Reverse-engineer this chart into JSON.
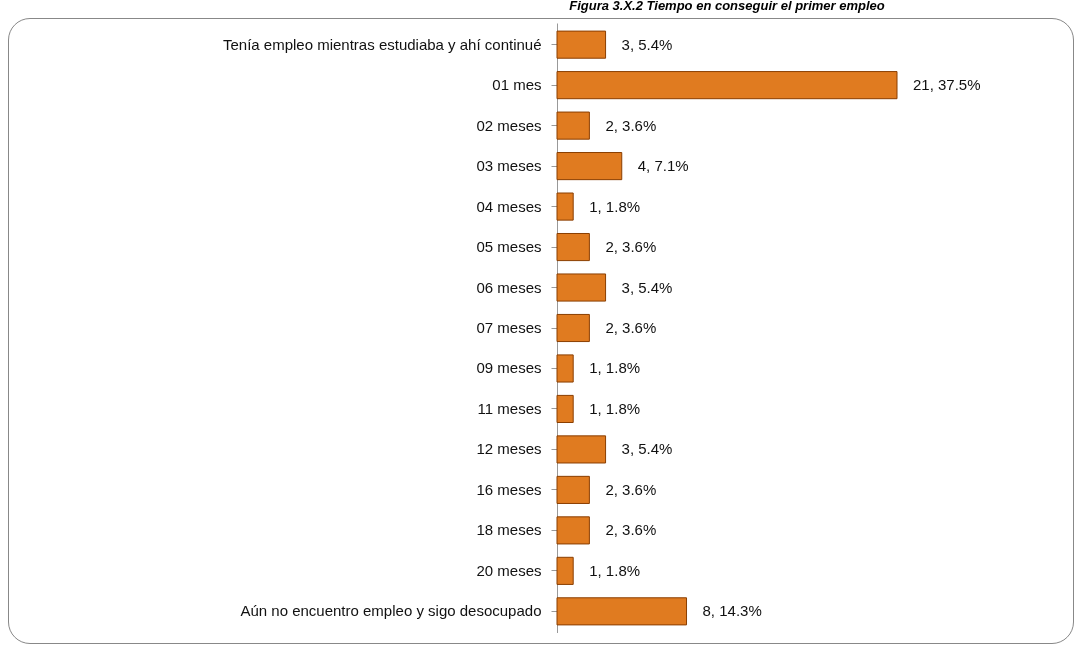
{
  "chart_data": {
    "type": "bar",
    "orientation": "horizontal",
    "title": "Figura 3.X.2 Tiempo en conseguir el primer empleo",
    "categories": [
      "Tenía empleo mientras estudiaba y ahí continué",
      "01 mes",
      "02 meses",
      "03 meses",
      "04 meses",
      "05 meses",
      "06 meses",
      "07 meses",
      "09 meses",
      "11 meses",
      "12 meses",
      "16 meses",
      "18 meses",
      "20 meses",
      "Aún no encuentro empleo y sigo desocupado"
    ],
    "values": [
      3,
      21,
      2,
      4,
      1,
      2,
      3,
      2,
      1,
      1,
      3,
      2,
      2,
      1,
      8
    ],
    "value_labels": [
      "3, 5.4%",
      "21, 37.5%",
      "2, 3.6%",
      "4, 7.1%",
      "1, 1.8%",
      "2, 3.6%",
      "3, 5.4%",
      "2, 3.6%",
      "1, 1.8%",
      "1, 1.8%",
      "3, 5.4%",
      "2, 3.6%",
      "2, 3.6%",
      "1, 1.8%",
      "8, 14.3%"
    ],
    "color": "#e07b20"
  }
}
